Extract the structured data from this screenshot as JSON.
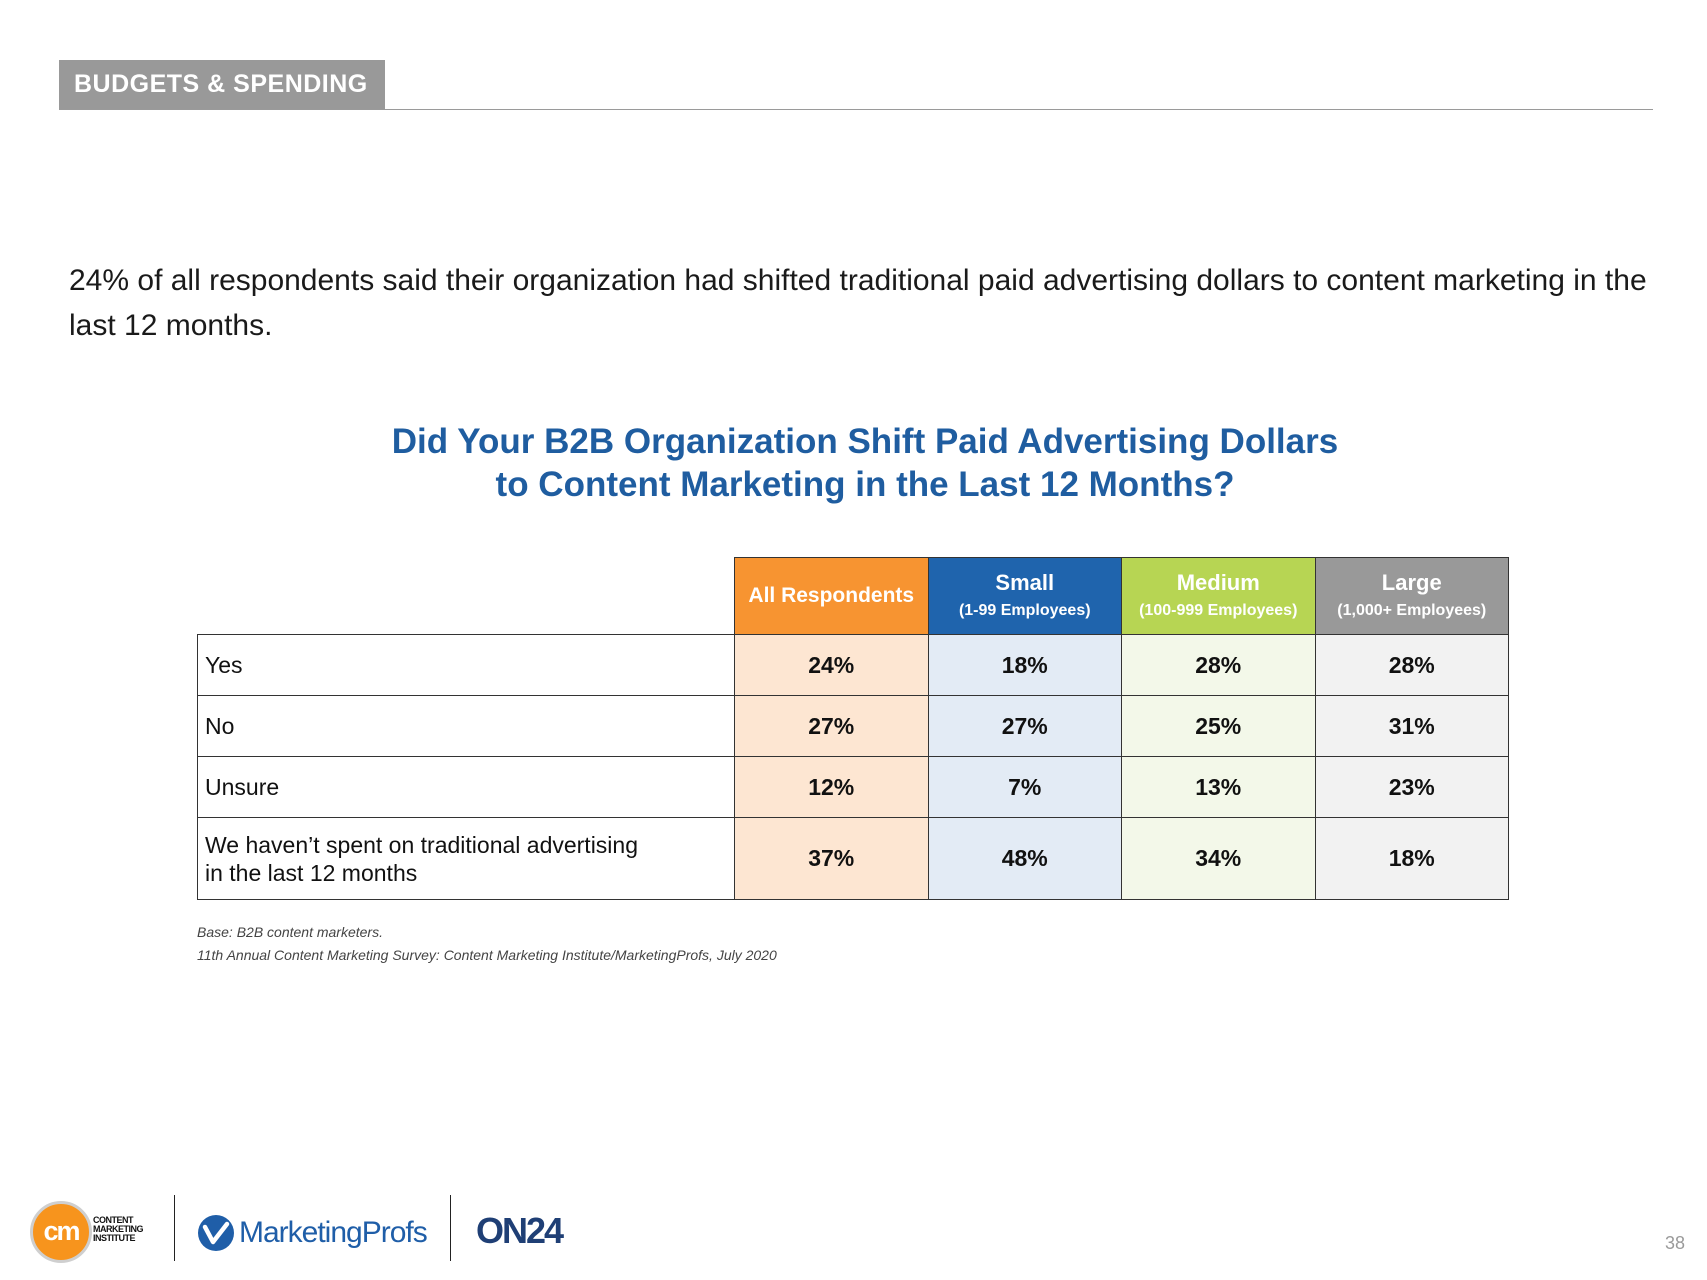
{
  "section": {
    "label": "BUDGETS & SPENDING"
  },
  "intro": {
    "text": "24% of all respondents said their organization had shifted traditional paid advertising dollars to content marketing in the last 12 months."
  },
  "chart": {
    "title_line1": "Did Your B2B Organization Shift Paid Advertising Dollars",
    "title_line2": "to Content Marketing in the Last 12 Months?"
  },
  "table": {
    "headers": {
      "all": {
        "label": "All Respondents"
      },
      "small": {
        "label": "Small",
        "sub": "(1-99 Employees)"
      },
      "medium": {
        "label": "Medium",
        "sub": "(100-999 Employees)"
      },
      "large": {
        "label": "Large",
        "sub": "(1,000+ Employees)"
      }
    },
    "rows": [
      {
        "label": "Yes",
        "all": "24%",
        "small": "18%",
        "medium": "28%",
        "large": "28%"
      },
      {
        "label": "No",
        "all": "27%",
        "small": "27%",
        "medium": "25%",
        "large": "31%"
      },
      {
        "label": "Unsure",
        "all": "12%",
        "small": "7%",
        "medium": "13%",
        "large": "23%"
      },
      {
        "label_line1": "We haven’t spent on traditional advertising",
        "label_line2": "in the last 12 months",
        "all": "37%",
        "small": "48%",
        "medium": "34%",
        "large": "18%"
      }
    ]
  },
  "notes": {
    "base": "Base: B2B content marketers.",
    "source": "11th Annual Content Marketing Survey: Content Marketing Institute/MarketingProfs, July 2020"
  },
  "footer": {
    "cmi_logo_mark": "cm",
    "cmi_logo_text": [
      "CONTENT",
      "MARKETING",
      "INSTITUTE"
    ],
    "marketingprofs_name": "MarketingProfs",
    "on24_name": "ON24",
    "page_number": "38"
  },
  "colors": {
    "section_tag": "#999999",
    "title": "#1f5da0",
    "all_header": "#f79431",
    "small_header": "#1f64ad",
    "medium_header": "#b7d553",
    "large_header": "#999999",
    "all_cell": "#fde6d2",
    "small_cell": "#e3ebf5",
    "medium_cell": "#f3f8e9",
    "large_cell": "#f2f2f2"
  }
}
